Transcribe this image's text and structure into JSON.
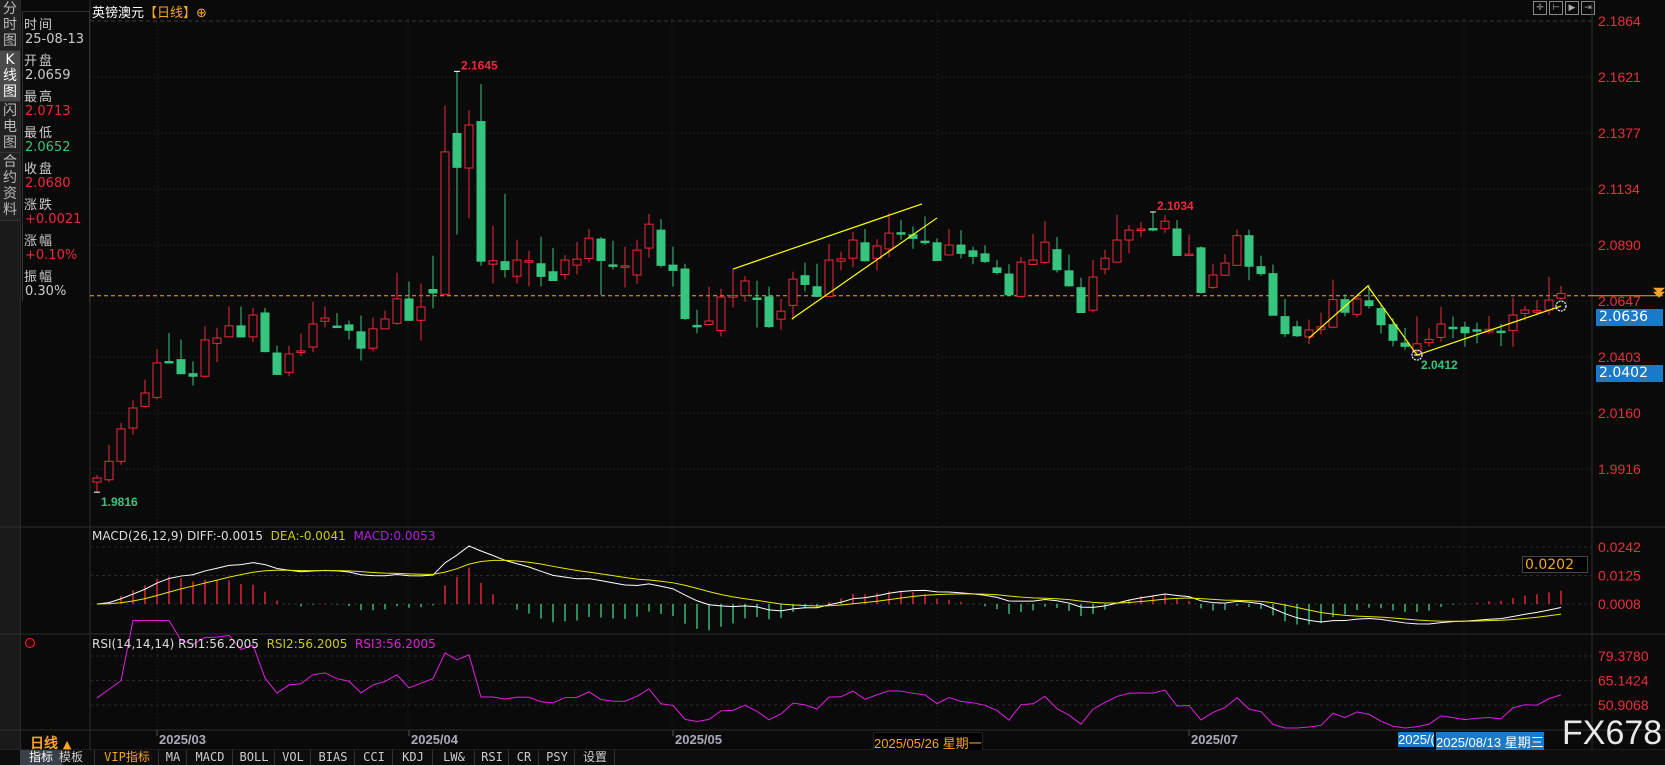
{
  "sidebar": {
    "tabs": [
      {
        "label": "分时图",
        "active": false
      },
      {
        "label": "K线图",
        "active": true
      },
      {
        "label": "闪电图",
        "active": false
      },
      {
        "label": "合约资料",
        "active": false
      }
    ]
  },
  "info_panel": [
    {
      "label": "时间",
      "value": "25-08-13",
      "color": "#cccccc"
    },
    {
      "label": "开盘",
      "value": "2.0659",
      "color": "#cccccc"
    },
    {
      "label": "最高",
      "value": "2.0713",
      "color": "#f0283c"
    },
    {
      "label": "最低",
      "value": "2.0652",
      "color": "#36c57f"
    },
    {
      "label": "收盘",
      "value": "2.0680",
      "color": "#f0283c"
    },
    {
      "label": "涨跌",
      "value": "+0.0021",
      "color": "#f0283c"
    },
    {
      "label": "涨幅",
      "value": "+0.10%",
      "color": "#f0283c"
    },
    {
      "label": "振幅",
      "value": "0.30%",
      "color": "#cccccc"
    }
  ],
  "header": {
    "symbol": "英镑澳元",
    "period": "【日线】",
    "add_icon": "⊕"
  },
  "toolbar_icons": [
    "crosshair-icon",
    "zoom-fit-icon",
    "play-icon",
    "move-right-icon"
  ],
  "price_tags": {
    "current": "2.0636",
    "secondary": "2.0402",
    "macd_tag": "0.0202"
  },
  "period_selector": {
    "label": "日线",
    "icon": "▲"
  },
  "bottom_tabs": [
    {
      "label": "指标",
      "active": true
    },
    {
      "label": "模板"
    },
    {
      "label": "VIP指标",
      "vip": true
    },
    {
      "label": "MA"
    },
    {
      "label": "MACD"
    },
    {
      "label": "BOLL"
    },
    {
      "label": "VOL"
    },
    {
      "label": "BIAS"
    },
    {
      "label": "CCI"
    },
    {
      "label": "KDJ"
    },
    {
      "label": "LW&"
    },
    {
      "label": "RSI"
    },
    {
      "label": "CR"
    },
    {
      "label": "PSY"
    },
    {
      "label": "设置"
    }
  ],
  "watermark": "FX678",
  "colors": {
    "up": "#f0283c",
    "down": "#36c57f",
    "background": "#0a0a0a",
    "axis_text": "#e8303a",
    "trendline": "#ffff00",
    "last_price_line": "#f5a623",
    "diff": "#ffffff",
    "dea": "#e6e600",
    "rsi": "#e020e0",
    "highlight": "#1a7ac8"
  },
  "chart_data": [
    {
      "type": "candlestick",
      "title": "英镑澳元【日线】",
      "y_ticks": [
        "2.1864",
        "2.1621",
        "2.1377",
        "2.1134",
        "2.0890",
        "2.0647",
        "2.0403",
        "2.0160",
        "1.9916"
      ],
      "ylim": [
        1.9916,
        2.1864
      ],
      "grid": true,
      "x_ticks": [
        {
          "label": "2025/03",
          "index": 6
        },
        {
          "label": "2025/04",
          "index": 27
        },
        {
          "label": "2025/05",
          "index": 49
        },
        {
          "label": "2025/07",
          "index": 92
        }
      ],
      "crosshair_date": {
        "label": "2025/05/26 星期一",
        "index": 70
      },
      "selected_date": {
        "label": "2025/08/13 星期三",
        "partial_label": "2025/(",
        "index": 123
      },
      "last_price_line": 2.067,
      "annotations": [
        {
          "text": "2.1645",
          "index": 31,
          "price": 2.1645,
          "color": "#f0283c"
        },
        {
          "text": "2.1034",
          "index": 89,
          "price": 2.1034,
          "color": "#f0283c"
        },
        {
          "text": "2.0412",
          "index": 111,
          "price": 2.0412,
          "color": "#36c57f"
        },
        {
          "text": "1.9816",
          "index": 1,
          "price": 1.9816,
          "color": "#36c57f"
        }
      ],
      "trendlines": [
        [
          [
            54,
            2.0786
          ],
          [
            69.75,
            2.1069
          ]
        ],
        [
          [
            58.9,
            2.0569
          ],
          [
            71,
            2.1008
          ]
        ],
        [
          [
            102,
            2.0486
          ],
          [
            106.9,
            2.0712
          ],
          [
            111,
            2.0412
          ],
          [
            123,
            2.0625
          ]
        ]
      ],
      "marker_circles": [
        [
          111,
          2.0412
        ],
        [
          123,
          2.0625
        ]
      ],
      "ohlc": [
        [
          1.986,
          1.9892,
          1.9816,
          1.9878
        ],
        [
          1.987,
          2.0023,
          1.986,
          1.995
        ],
        [
          1.995,
          2.0117,
          1.9936,
          2.0091
        ],
        [
          2.0095,
          2.0215,
          2.0066,
          2.0182
        ],
        [
          2.0189,
          2.0305,
          2.0185,
          2.0247
        ],
        [
          2.0228,
          2.0439,
          2.0218,
          2.0378
        ],
        [
          2.0384,
          2.0508,
          2.0378,
          2.038
        ],
        [
          2.0392,
          2.0479,
          2.0329,
          2.0331
        ],
        [
          2.0331,
          2.0384,
          2.0279,
          2.032
        ],
        [
          2.032,
          2.0537,
          2.0316,
          2.0478
        ],
        [
          2.0463,
          2.0531,
          2.0381,
          2.0486
        ],
        [
          2.0491,
          2.0623,
          2.0489,
          2.0539
        ],
        [
          2.0539,
          2.0623,
          2.0489,
          2.0491
        ],
        [
          2.0491,
          2.0617,
          2.0468,
          2.0586
        ],
        [
          2.0595,
          2.0617,
          2.0424,
          2.0427
        ],
        [
          2.0421,
          2.0453,
          2.0326,
          2.0328
        ],
        [
          2.0337,
          2.0453,
          2.032,
          2.0417
        ],
        [
          2.0426,
          2.0505,
          2.0407,
          2.043
        ],
        [
          2.0447,
          2.0644,
          2.0424,
          2.0547
        ],
        [
          2.0559,
          2.0623,
          2.0533,
          2.0573
        ],
        [
          2.0538,
          2.0595,
          2.0531,
          2.0536
        ],
        [
          2.0543,
          2.0562,
          2.0479,
          2.052
        ],
        [
          2.0513,
          2.0584,
          2.0388,
          2.0442
        ],
        [
          2.0442,
          2.0575,
          2.0428,
          2.0526
        ],
        [
          2.0526,
          2.0605,
          2.0524,
          2.0569
        ],
        [
          2.055,
          2.0769,
          2.0544,
          2.0656
        ],
        [
          2.0656,
          2.0731,
          2.0561,
          2.0563
        ],
        [
          2.0563,
          2.0723,
          2.0475,
          2.0621
        ],
        [
          2.0697,
          2.0844,
          2.0615,
          2.0682
        ],
        [
          2.0676,
          2.1496,
          2.0674,
          2.1295
        ],
        [
          2.1375,
          2.1645,
          2.0936,
          2.1228
        ],
        [
          2.1225,
          2.1475,
          2.1007,
          2.1412
        ],
        [
          2.1427,
          2.159,
          2.08,
          2.082
        ],
        [
          2.0807,
          2.0974,
          2.0723,
          2.0822
        ],
        [
          2.0818,
          2.1113,
          2.0749,
          2.0784
        ],
        [
          2.0755,
          2.0913,
          2.0723,
          2.0825
        ],
        [
          2.0817,
          2.0865,
          2.071,
          2.0822
        ],
        [
          2.0809,
          2.0926,
          2.071,
          2.0754
        ],
        [
          2.0774,
          2.0878,
          2.0736,
          2.0736
        ],
        [
          2.0762,
          2.0847,
          2.0741,
          2.0825
        ],
        [
          2.0803,
          2.0904,
          2.0762,
          2.0829
        ],
        [
          2.0832,
          2.096,
          2.0815,
          2.092
        ],
        [
          2.0916,
          2.0925,
          2.0673,
          2.0823
        ],
        [
          2.0804,
          2.0909,
          2.0784,
          2.08
        ],
        [
          2.0796,
          2.0883,
          2.0706,
          2.08
        ],
        [
          2.076,
          2.0913,
          2.0722,
          2.0868
        ],
        [
          2.0877,
          2.1026,
          2.0836,
          2.0981
        ],
        [
          2.0955,
          2.1003,
          2.0793,
          2.0802
        ],
        [
          2.0803,
          2.0883,
          2.071,
          2.078
        ],
        [
          2.0786,
          2.0809,
          2.0565,
          2.0571
        ],
        [
          2.0541,
          2.0609,
          2.0507,
          2.0535
        ],
        [
          2.0545,
          2.0709,
          2.0541,
          2.056
        ],
        [
          2.0519,
          2.07,
          2.0493,
          2.0664
        ],
        [
          2.0665,
          2.0786,
          2.0619,
          2.067
        ],
        [
          2.0671,
          2.0755,
          2.0645,
          2.0734
        ],
        [
          2.066,
          2.0735,
          2.0532,
          2.0656
        ],
        [
          2.0665,
          2.0709,
          2.053,
          2.0536
        ],
        [
          2.0568,
          2.0657,
          2.0522,
          2.0603
        ],
        [
          2.0628,
          2.0774,
          2.0565,
          2.0742
        ],
        [
          2.0757,
          2.0813,
          2.0689,
          2.0719
        ],
        [
          2.0709,
          2.0809,
          2.0665,
          2.0667
        ],
        [
          2.0667,
          2.0896,
          2.0665,
          2.0825
        ],
        [
          2.082,
          2.0861,
          2.078,
          2.083
        ],
        [
          2.0833,
          2.0948,
          2.0793,
          2.0912
        ],
        [
          2.09,
          2.096,
          2.0818,
          2.0822
        ],
        [
          2.0832,
          2.0916,
          2.078,
          2.0886
        ],
        [
          2.0873,
          2.1029,
          2.0838,
          2.0942
        ],
        [
          2.0944,
          2.0999,
          2.0913,
          2.094
        ],
        [
          2.0935,
          2.0971,
          2.0874,
          2.0919
        ],
        [
          2.0907,
          2.1015,
          2.0891,
          2.0905
        ],
        [
          2.09,
          2.092,
          2.082,
          2.0823
        ],
        [
          2.0847,
          2.096,
          2.0845,
          2.089
        ],
        [
          2.089,
          2.0955,
          2.0832,
          2.0854
        ],
        [
          2.0865,
          2.0883,
          2.0807,
          2.0841
        ],
        [
          2.0852,
          2.089,
          2.0812,
          2.0819
        ],
        [
          2.0791,
          2.0826,
          2.0762,
          2.0771
        ],
        [
          2.0764,
          2.0807,
          2.0672,
          2.0674
        ],
        [
          2.0667,
          2.0838,
          2.0663,
          2.0816
        ],
        [
          2.0806,
          2.0938,
          2.0804,
          2.0825
        ],
        [
          2.0815,
          2.0994,
          2.0806,
          2.0903
        ],
        [
          2.087,
          2.0925,
          2.0771,
          2.0783
        ],
        [
          2.0778,
          2.0848,
          2.0709,
          2.0713
        ],
        [
          2.0705,
          2.0748,
          2.0597,
          2.0597
        ],
        [
          2.0607,
          2.0826,
          2.0597,
          2.0751
        ],
        [
          2.0786,
          2.087,
          2.0762,
          2.0833
        ],
        [
          2.0816,
          2.1022,
          2.0816,
          2.0912
        ],
        [
          2.0912,
          2.0977,
          2.0855,
          2.0955
        ],
        [
          2.0955,
          2.099,
          2.0925,
          2.096
        ],
        [
          2.0962,
          2.1034,
          2.095,
          2.0958
        ],
        [
          2.0961,
          2.102,
          2.0942,
          2.0994
        ],
        [
          2.096,
          2.0999,
          2.0845,
          2.0845
        ],
        [
          2.0848,
          2.0935,
          2.0848,
          2.0851
        ],
        [
          2.0878,
          2.0885,
          2.068,
          2.0684
        ],
        [
          2.0706,
          2.0809,
          2.0699,
          2.076
        ],
        [
          2.0759,
          2.0851,
          2.0757,
          2.0812
        ],
        [
          2.0802,
          2.0957,
          2.08,
          2.0931
        ],
        [
          2.0931,
          2.0957,
          2.0737,
          2.0798
        ],
        [
          2.0796,
          2.0844,
          2.0757,
          2.0766
        ],
        [
          2.0766,
          2.0805,
          2.0585,
          2.0585
        ],
        [
          2.0579,
          2.0657,
          2.0491,
          2.0505
        ],
        [
          2.0535,
          2.0561,
          2.0491,
          2.0496
        ],
        [
          2.0491,
          2.0566,
          2.046,
          2.0521
        ],
        [
          2.0524,
          2.0596,
          2.0501,
          2.0535
        ],
        [
          2.0533,
          2.074,
          2.0528,
          2.0653
        ],
        [
          2.0653,
          2.0677,
          2.058,
          2.0598
        ],
        [
          2.0589,
          2.0667,
          2.0575,
          2.0656
        ],
        [
          2.0648,
          2.0718,
          2.0614,
          2.0627
        ],
        [
          2.0614,
          2.0631,
          2.0505,
          2.0544
        ],
        [
          2.0544,
          2.0573,
          2.045,
          2.0476
        ],
        [
          2.0464,
          2.053,
          2.0435,
          2.045
        ],
        [
          2.043,
          2.058,
          2.0412,
          2.0461
        ],
        [
          2.0466,
          2.0528,
          2.0448,
          2.048
        ],
        [
          2.0489,
          2.0622,
          2.047,
          2.0547
        ],
        [
          2.0533,
          2.0579,
          2.0485,
          2.0529
        ],
        [
          2.0533,
          2.0557,
          2.0448,
          2.0509
        ],
        [
          2.0522,
          2.0553,
          2.0463,
          2.0519
        ],
        [
          2.0513,
          2.0582,
          2.0506,
          2.0524
        ],
        [
          2.0516,
          2.0547,
          2.0451,
          2.0513
        ],
        [
          2.0518,
          2.0661,
          2.0448,
          2.0586
        ],
        [
          2.0593,
          2.0625,
          2.0564,
          2.0608
        ],
        [
          2.0598,
          2.0651,
          2.0586,
          2.0605
        ],
        [
          2.0608,
          2.0753,
          2.0586,
          2.0651
        ],
        [
          2.0659,
          2.0713,
          2.0652,
          2.068
        ]
      ]
    },
    {
      "type": "line",
      "title": "MACD(26,12,9)",
      "legend": {
        "diff": "DIFF:-0.0015",
        "dea": "DEA:-0.0041",
        "macd": "MACD:0.0053"
      },
      "y_ticks": [
        "0.0242",
        "0.0125",
        "0.0008"
      ],
      "ylim": [
        -0.0045,
        0.0242
      ]
    },
    {
      "type": "line",
      "title": "RSI(14,14,14)",
      "legend": {
        "rsi1": "RSI1:56.2005",
        "rsi2": "RSI2:56.2005",
        "rsi3": "RSI3:56.2005"
      },
      "y_ticks": [
        "79.3780",
        "65.1424",
        "50.9068"
      ],
      "ylim": [
        37,
        79.378
      ]
    }
  ]
}
